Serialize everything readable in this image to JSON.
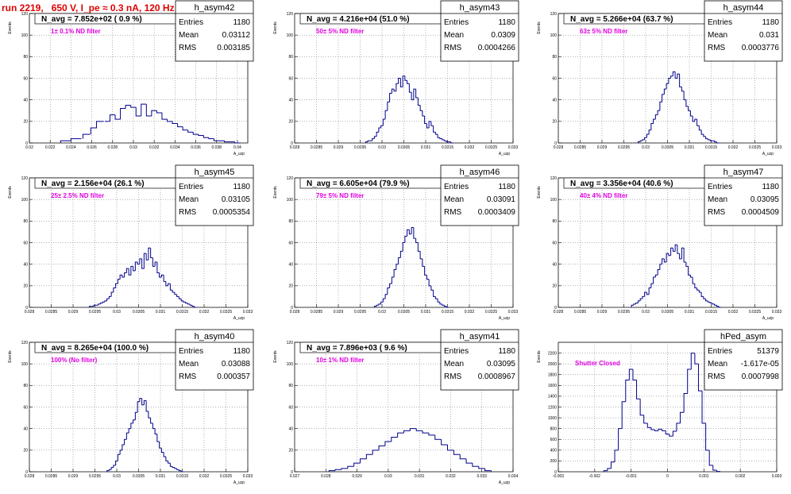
{
  "page": {
    "title": "run 2219,   650 V, I_pe ≈ 0.3 nA, 120 Hz"
  },
  "chart_data": [
    {
      "type": "bar",
      "title": "h_asym42",
      "n_avg_text": "N_avg = 7.852e+02 ( 0.9 %)",
      "note": "1± 0.1% ND filter",
      "stats": {
        "entries": "1180",
        "mean": "0.03112",
        "rms": "0.003185"
      },
      "ylabel": "Events",
      "xlabel": "A_uzp",
      "xlim": [
        0.02,
        0.041
      ],
      "ylim": [
        0,
        120
      ],
      "xticks": [
        0.02,
        0.022,
        0.024,
        0.026,
        0.028,
        0.03,
        0.032,
        0.034,
        0.036,
        0.038,
        0.04
      ],
      "xtick_labels": [
        "0.02",
        "0.022",
        "0.024",
        "0.026",
        "0.028",
        "0.03",
        "0.032",
        "0.034",
        "0.036",
        "0.038",
        "0.04"
      ],
      "yticks": [
        0,
        20,
        40,
        60,
        80,
        100,
        120
      ],
      "ytick_labels": [
        "0",
        "20",
        "40",
        "60",
        "80",
        "100",
        "120"
      ],
      "x": [
        0.0235,
        0.0245,
        0.0255,
        0.0262,
        0.0268,
        0.0275,
        0.028,
        0.0285,
        0.029,
        0.0295,
        0.03,
        0.0305,
        0.031,
        0.0315,
        0.032,
        0.0325,
        0.033,
        0.0335,
        0.034,
        0.0345,
        0.035,
        0.0355,
        0.036,
        0.0365,
        0.037,
        0.0375,
        0.038,
        0.0385,
        0.039,
        0.0395,
        0.04
      ],
      "values": [
        2,
        4,
        8,
        14,
        20,
        20,
        26,
        22,
        32,
        35,
        33,
        25,
        36,
        25,
        30,
        28,
        22,
        20,
        18,
        15,
        12,
        10,
        8,
        7,
        5,
        4,
        2,
        2,
        1,
        1,
        0
      ],
      "grid": true
    },
    {
      "type": "bar",
      "title": "h_asym43",
      "n_avg_text": "N_avg = 4.216e+04 (51.0 %)",
      "note": "50± 5% ND filter",
      "stats": {
        "entries": "1180",
        "mean": "0.0309",
        "rms": "0.0004266"
      },
      "ylabel": "Events",
      "xlabel": "A_uzp",
      "xlim": [
        0.028,
        0.033
      ],
      "ylim": [
        0,
        120
      ],
      "xticks": [
        0.028,
        0.0285,
        0.029,
        0.0295,
        0.03,
        0.0305,
        0.031,
        0.0315,
        0.032,
        0.0325,
        0.033
      ],
      "xtick_labels": [
        "0.028",
        "0.0285",
        "0.029",
        "0.0295",
        "0.03",
        "0.0305",
        "0.031",
        "0.0315",
        "0.032",
        "0.0325",
        "0.033"
      ],
      "yticks": [
        0,
        20,
        40,
        60,
        80,
        100,
        120
      ],
      "ytick_labels": [
        "0",
        "20",
        "40",
        "60",
        "80",
        "100",
        "120"
      ],
      "x": [
        0.02965,
        0.0297,
        0.02975,
        0.0298,
        0.02985,
        0.0299,
        0.02995,
        0.03,
        0.03005,
        0.0301,
        0.03015,
        0.0302,
        0.03025,
        0.0303,
        0.03035,
        0.0304,
        0.03045,
        0.0305,
        0.03055,
        0.0306,
        0.03065,
        0.0307,
        0.03075,
        0.0308,
        0.03085,
        0.0309,
        0.03095,
        0.031,
        0.03105,
        0.0311,
        0.03115,
        0.0312,
        0.03125,
        0.0313,
        0.03135,
        0.0314,
        0.03145,
        0.0315,
        0.03155,
        0.0316
      ],
      "values": [
        1,
        2,
        2,
        4,
        6,
        10,
        14,
        16,
        22,
        30,
        38,
        46,
        50,
        48,
        55,
        60,
        52,
        62,
        58,
        55,
        47,
        40,
        50,
        42,
        35,
        30,
        25,
        18,
        14,
        20,
        16,
        10,
        8,
        5,
        4,
        3,
        2,
        1,
        1,
        0
      ],
      "grid": true
    },
    {
      "type": "bar",
      "title": "h_asym44",
      "n_avg_text": "N_avg = 5.266e+04 (63.7 %)",
      "note": "63± 5% ND filter",
      "stats": {
        "entries": "1180",
        "mean": "0.031",
        "rms": "0.0003776"
      },
      "ylabel": "Events",
      "xlabel": "A_uzp",
      "xlim": [
        0.028,
        0.033
      ],
      "ylim": [
        0,
        120
      ],
      "xticks": [
        0.028,
        0.0285,
        0.029,
        0.0295,
        0.03,
        0.0305,
        0.031,
        0.0315,
        0.032,
        0.0325,
        0.033
      ],
      "xtick_labels": [
        "0.028",
        "0.0285",
        "0.029",
        "0.0295",
        "0.03",
        "0.0305",
        "0.031",
        "0.0315",
        "0.032",
        "0.0325",
        "0.033"
      ],
      "yticks": [
        0,
        20,
        40,
        60,
        80,
        100,
        120
      ],
      "ytick_labels": [
        "0",
        "20",
        "40",
        "60",
        "80",
        "100",
        "120"
      ],
      "x": [
        0.02985,
        0.0299,
        0.02995,
        0.03,
        0.03005,
        0.0301,
        0.03015,
        0.0302,
        0.03025,
        0.0303,
        0.03035,
        0.0304,
        0.03045,
        0.0305,
        0.03055,
        0.0306,
        0.03065,
        0.0307,
        0.03075,
        0.0308,
        0.03085,
        0.0309,
        0.03095,
        0.031,
        0.03105,
        0.0311,
        0.03115,
        0.0312,
        0.03125,
        0.0313,
        0.03135,
        0.0314,
        0.03145,
        0.0315,
        0.03155,
        0.0316,
        0.03165
      ],
      "values": [
        1,
        2,
        3,
        5,
        8,
        12,
        18,
        22,
        26,
        30,
        38,
        45,
        50,
        55,
        60,
        62,
        66,
        60,
        64,
        52,
        48,
        40,
        34,
        30,
        25,
        20,
        22,
        16,
        12,
        8,
        6,
        4,
        3,
        2,
        2,
        1,
        0
      ],
      "grid": true
    },
    {
      "type": "bar",
      "title": "h_asym45",
      "n_avg_text": "N_avg = 2.156e+04 (26.1 %)",
      "note": "25± 2.5% ND filter",
      "stats": {
        "entries": "1180",
        "mean": "0.03105",
        "rms": "0.0005354"
      },
      "ylabel": "Events",
      "xlabel": "A_uzp",
      "xlim": [
        0.028,
        0.033
      ],
      "ylim": [
        0,
        120
      ],
      "xticks": [
        0.028,
        0.0285,
        0.029,
        0.0295,
        0.03,
        0.0305,
        0.031,
        0.0315,
        0.032,
        0.0325,
        0.033
      ],
      "xtick_labels": [
        "0.028",
        "0.0285",
        "0.029",
        "0.0295",
        "0.03",
        "0.0305",
        "0.031",
        "0.0315",
        "0.032",
        "0.0325",
        "0.033"
      ],
      "yticks": [
        0,
        20,
        40,
        60,
        80,
        100,
        120
      ],
      "ytick_labels": [
        "0",
        "20",
        "40",
        "60",
        "80",
        "100",
        "120"
      ],
      "x": [
        0.0294,
        0.02945,
        0.0295,
        0.02955,
        0.0296,
        0.02965,
        0.0297,
        0.02975,
        0.0298,
        0.02985,
        0.0299,
        0.02995,
        0.03,
        0.03005,
        0.0301,
        0.03015,
        0.0302,
        0.03025,
        0.0303,
        0.03035,
        0.0304,
        0.03045,
        0.0305,
        0.03055,
        0.0306,
        0.03065,
        0.0307,
        0.03075,
        0.0308,
        0.03085,
        0.0309,
        0.03095,
        0.031,
        0.03105,
        0.0311,
        0.03115,
        0.0312,
        0.03125,
        0.0313,
        0.03135,
        0.0314,
        0.03145,
        0.0315,
        0.03155,
        0.0316,
        0.03165,
        0.0317,
        0.03175,
        0.0318
      ],
      "values": [
        1,
        1,
        2,
        2,
        3,
        4,
        5,
        6,
        8,
        10,
        14,
        18,
        22,
        26,
        30,
        28,
        32,
        36,
        30,
        38,
        34,
        42,
        40,
        45,
        36,
        50,
        44,
        55,
        46,
        38,
        42,
        32,
        28,
        30,
        24,
        20,
        22,
        16,
        14,
        12,
        10,
        8,
        6,
        5,
        4,
        3,
        2,
        1,
        0
      ],
      "grid": true
    },
    {
      "type": "bar",
      "title": "h_asym46",
      "n_avg_text": "N_avg = 6.605e+04 (79.9 %)",
      "note": "79± 5% ND filter",
      "stats": {
        "entries": "1180",
        "mean": "0.03091",
        "rms": "0.0003409"
      },
      "ylabel": "Events",
      "xlabel": "A_uzp",
      "xlim": [
        0.028,
        0.033
      ],
      "ylim": [
        0,
        120
      ],
      "xticks": [
        0.028,
        0.0285,
        0.029,
        0.0295,
        0.03,
        0.0305,
        0.031,
        0.0315,
        0.032,
        0.0325,
        0.033
      ],
      "xtick_labels": [
        "0.028",
        "0.0285",
        "0.029",
        "0.0295",
        "0.03",
        "0.0305",
        "0.031",
        "0.0315",
        "0.032",
        "0.0325",
        "0.033"
      ],
      "yticks": [
        0,
        20,
        40,
        60,
        80,
        100,
        120
      ],
      "ytick_labels": [
        "0",
        "20",
        "40",
        "60",
        "80",
        "100",
        "120"
      ],
      "x": [
        0.02985,
        0.0299,
        0.02995,
        0.03,
        0.03005,
        0.0301,
        0.03015,
        0.0302,
        0.03025,
        0.0303,
        0.03035,
        0.0304,
        0.03045,
        0.0305,
        0.03055,
        0.0306,
        0.03065,
        0.0307,
        0.03075,
        0.0308,
        0.03085,
        0.0309,
        0.03095,
        0.031,
        0.03105,
        0.0311,
        0.03115,
        0.0312,
        0.03125,
        0.0313,
        0.03135,
        0.0314,
        0.03145,
        0.0315
      ],
      "values": [
        1,
        2,
        3,
        5,
        8,
        12,
        18,
        22,
        28,
        35,
        40,
        46,
        52,
        60,
        66,
        72,
        68,
        74,
        64,
        60,
        52,
        45,
        38,
        30,
        26,
        20,
        16,
        10,
        8,
        5,
        3,
        2,
        1,
        0
      ],
      "grid": true
    },
    {
      "type": "bar",
      "title": "h_asym47",
      "n_avg_text": "N_avg = 3.356e+04 (40.6 %)",
      "note": "40± 4% ND filter",
      "stats": {
        "entries": "1180",
        "mean": "0.03095",
        "rms": "0.0004509"
      },
      "ylabel": "Events",
      "xlabel": "A_uzp",
      "xlim": [
        0.028,
        0.033
      ],
      "ylim": [
        0,
        120
      ],
      "xticks": [
        0.028,
        0.0285,
        0.029,
        0.0295,
        0.03,
        0.0305,
        0.031,
        0.0315,
        0.032,
        0.0325,
        0.033
      ],
      "xtick_labels": [
        "0.028",
        "0.0285",
        "0.029",
        "0.0295",
        "0.03",
        "0.0305",
        "0.031",
        "0.0315",
        "0.032",
        "0.0325",
        "0.033"
      ],
      "yticks": [
        0,
        20,
        40,
        60,
        80,
        100,
        120
      ],
      "ytick_labels": [
        "0",
        "20",
        "40",
        "60",
        "80",
        "100",
        "120"
      ],
      "x": [
        0.0297,
        0.02975,
        0.0298,
        0.02985,
        0.0299,
        0.02995,
        0.03,
        0.03005,
        0.0301,
        0.03015,
        0.0302,
        0.03025,
        0.0303,
        0.03035,
        0.0304,
        0.03045,
        0.0305,
        0.03055,
        0.0306,
        0.03065,
        0.0307,
        0.03075,
        0.0308,
        0.03085,
        0.0309,
        0.03095,
        0.031,
        0.03105,
        0.0311,
        0.03115,
        0.0312,
        0.03125,
        0.0313,
        0.03135,
        0.0314,
        0.03145,
        0.0315,
        0.03155,
        0.0316,
        0.03165,
        0.0317
      ],
      "values": [
        2,
        3,
        4,
        6,
        8,
        10,
        14,
        12,
        18,
        22,
        28,
        30,
        35,
        40,
        45,
        42,
        50,
        48,
        55,
        52,
        58,
        50,
        45,
        55,
        42,
        38,
        30,
        28,
        22,
        18,
        16,
        14,
        10,
        8,
        6,
        5,
        4,
        3,
        2,
        1,
        0
      ],
      "grid": true
    },
    {
      "type": "bar",
      "title": "h_asym40",
      "n_avg_text": "N_avg = 8.265e+04 (100.0 %)",
      "note": "100% (No filter)",
      "stats": {
        "entries": "1180",
        "mean": "0.03088",
        "rms": "0.000357"
      },
      "ylabel": "Events",
      "xlabel": "A_uzp",
      "xlim": [
        0.028,
        0.033
      ],
      "ylim": [
        0,
        120
      ],
      "xticks": [
        0.028,
        0.0285,
        0.029,
        0.0295,
        0.03,
        0.0305,
        0.031,
        0.0315,
        0.032,
        0.0325,
        0.033
      ],
      "xtick_labels": [
        "0.028",
        "0.0285",
        "0.029",
        "0.0295",
        "0.03",
        "0.0305",
        "0.031",
        "0.0315",
        "0.032",
        "0.0325",
        "0.033"
      ],
      "yticks": [
        0,
        20,
        40,
        60,
        80,
        100,
        120
      ],
      "ytick_labels": [
        "0",
        "20",
        "40",
        "60",
        "80",
        "100",
        "120"
      ],
      "x": [
        0.0298,
        0.02985,
        0.0299,
        0.02995,
        0.03,
        0.03005,
        0.0301,
        0.03015,
        0.0302,
        0.03025,
        0.0303,
        0.03035,
        0.0304,
        0.03045,
        0.0305,
        0.03055,
        0.0306,
        0.03065,
        0.0307,
        0.03075,
        0.0308,
        0.03085,
        0.0309,
        0.03095,
        0.031,
        0.03105,
        0.0311,
        0.03115,
        0.0312,
        0.03125,
        0.0313,
        0.03135,
        0.0314,
        0.03145,
        0.0315
      ],
      "values": [
        1,
        2,
        4,
        6,
        10,
        16,
        20,
        25,
        30,
        36,
        40,
        45,
        48,
        55,
        65,
        68,
        62,
        66,
        56,
        50,
        45,
        40,
        35,
        28,
        22,
        18,
        14,
        10,
        8,
        5,
        4,
        3,
        2,
        1,
        0
      ],
      "grid": true
    },
    {
      "type": "bar",
      "title": "h_asym41",
      "n_avg_text": "N_avg = 7.896e+03 ( 9.6 %)",
      "note": "10± 1% ND filter",
      "stats": {
        "entries": "1180",
        "mean": "0.03095",
        "rms": "0.0008967"
      },
      "ylabel": "Events",
      "xlabel": "A_uzp",
      "xlim": [
        0.027,
        0.034
      ],
      "ylim": [
        0,
        120
      ],
      "xticks": [
        0.027,
        0.028,
        0.029,
        0.03,
        0.031,
        0.032,
        0.033,
        0.034
      ],
      "xtick_labels": [
        "0.027",
        "0.028",
        "0.029",
        "0.03",
        "0.031",
        "0.032",
        "0.033",
        "0.034"
      ],
      "yticks": [
        0,
        20,
        40,
        60,
        80,
        100,
        120
      ],
      "ytick_labels": [
        "0",
        "20",
        "40",
        "60",
        "80",
        "100",
        "120"
      ],
      "x": [
        0.0282,
        0.0284,
        0.0286,
        0.0288,
        0.029,
        0.0292,
        0.0294,
        0.0296,
        0.0298,
        0.03,
        0.0302,
        0.0304,
        0.0306,
        0.0308,
        0.031,
        0.0312,
        0.0314,
        0.0316,
        0.0318,
        0.032,
        0.0322,
        0.0324,
        0.0326,
        0.0328,
        0.033,
        0.0332
      ],
      "values": [
        1,
        2,
        3,
        5,
        8,
        12,
        16,
        20,
        24,
        28,
        32,
        36,
        38,
        40,
        38,
        36,
        34,
        30,
        25,
        20,
        16,
        12,
        8,
        5,
        3,
        1
      ],
      "grid": true
    },
    {
      "type": "bar",
      "title": "hPed_asym",
      "n_avg_text": "",
      "note": "Shutter Closed",
      "stats": {
        "entries": "51379",
        "mean": "-1.617e-05",
        "rms": "0.0007998"
      },
      "ylabel": "Events",
      "xlabel": "",
      "xlim": [
        -0.003,
        0.003
      ],
      "ylim": [
        0,
        2400
      ],
      "xticks": [
        -0.003,
        -0.002,
        -0.001,
        0,
        0.001,
        0.002,
        0.003
      ],
      "xtick_labels": [
        "-0.003",
        "-0.002",
        "-0.001",
        "0",
        "0.001",
        "0.002",
        "0.003"
      ],
      "yticks": [
        0,
        200,
        400,
        600,
        800,
        1000,
        1200,
        1400,
        1600,
        1800,
        2000,
        2200
      ],
      "ytick_labels": [
        "0",
        "200",
        "400",
        "600",
        "800",
        "1000",
        "1200",
        "1400",
        "1600",
        "1800",
        "2000",
        "2200"
      ],
      "x": [
        -0.0017,
        -0.0016,
        -0.0015,
        -0.0014,
        -0.0013,
        -0.0012,
        -0.0011,
        -0.001,
        -0.0009,
        -0.0008,
        -0.0007,
        -0.0006,
        -0.0005,
        -0.0004,
        -0.0003,
        -0.0002,
        -0.0001,
        0,
        0.0001,
        0.0002,
        0.0003,
        0.0004,
        0.0005,
        0.0006,
        0.0007,
        0.0008,
        0.0009,
        0.001,
        0.0011,
        0.0012,
        0.0013,
        0.0014
      ],
      "values": [
        20,
        60,
        180,
        400,
        800,
        1300,
        1700,
        1900,
        1700,
        1350,
        1050,
        900,
        820,
        780,
        760,
        790,
        760,
        700,
        660,
        750,
        900,
        1100,
        1450,
        1900,
        2200,
        2000,
        1500,
        900,
        400,
        120,
        30,
        5
      ],
      "grid": true
    }
  ]
}
